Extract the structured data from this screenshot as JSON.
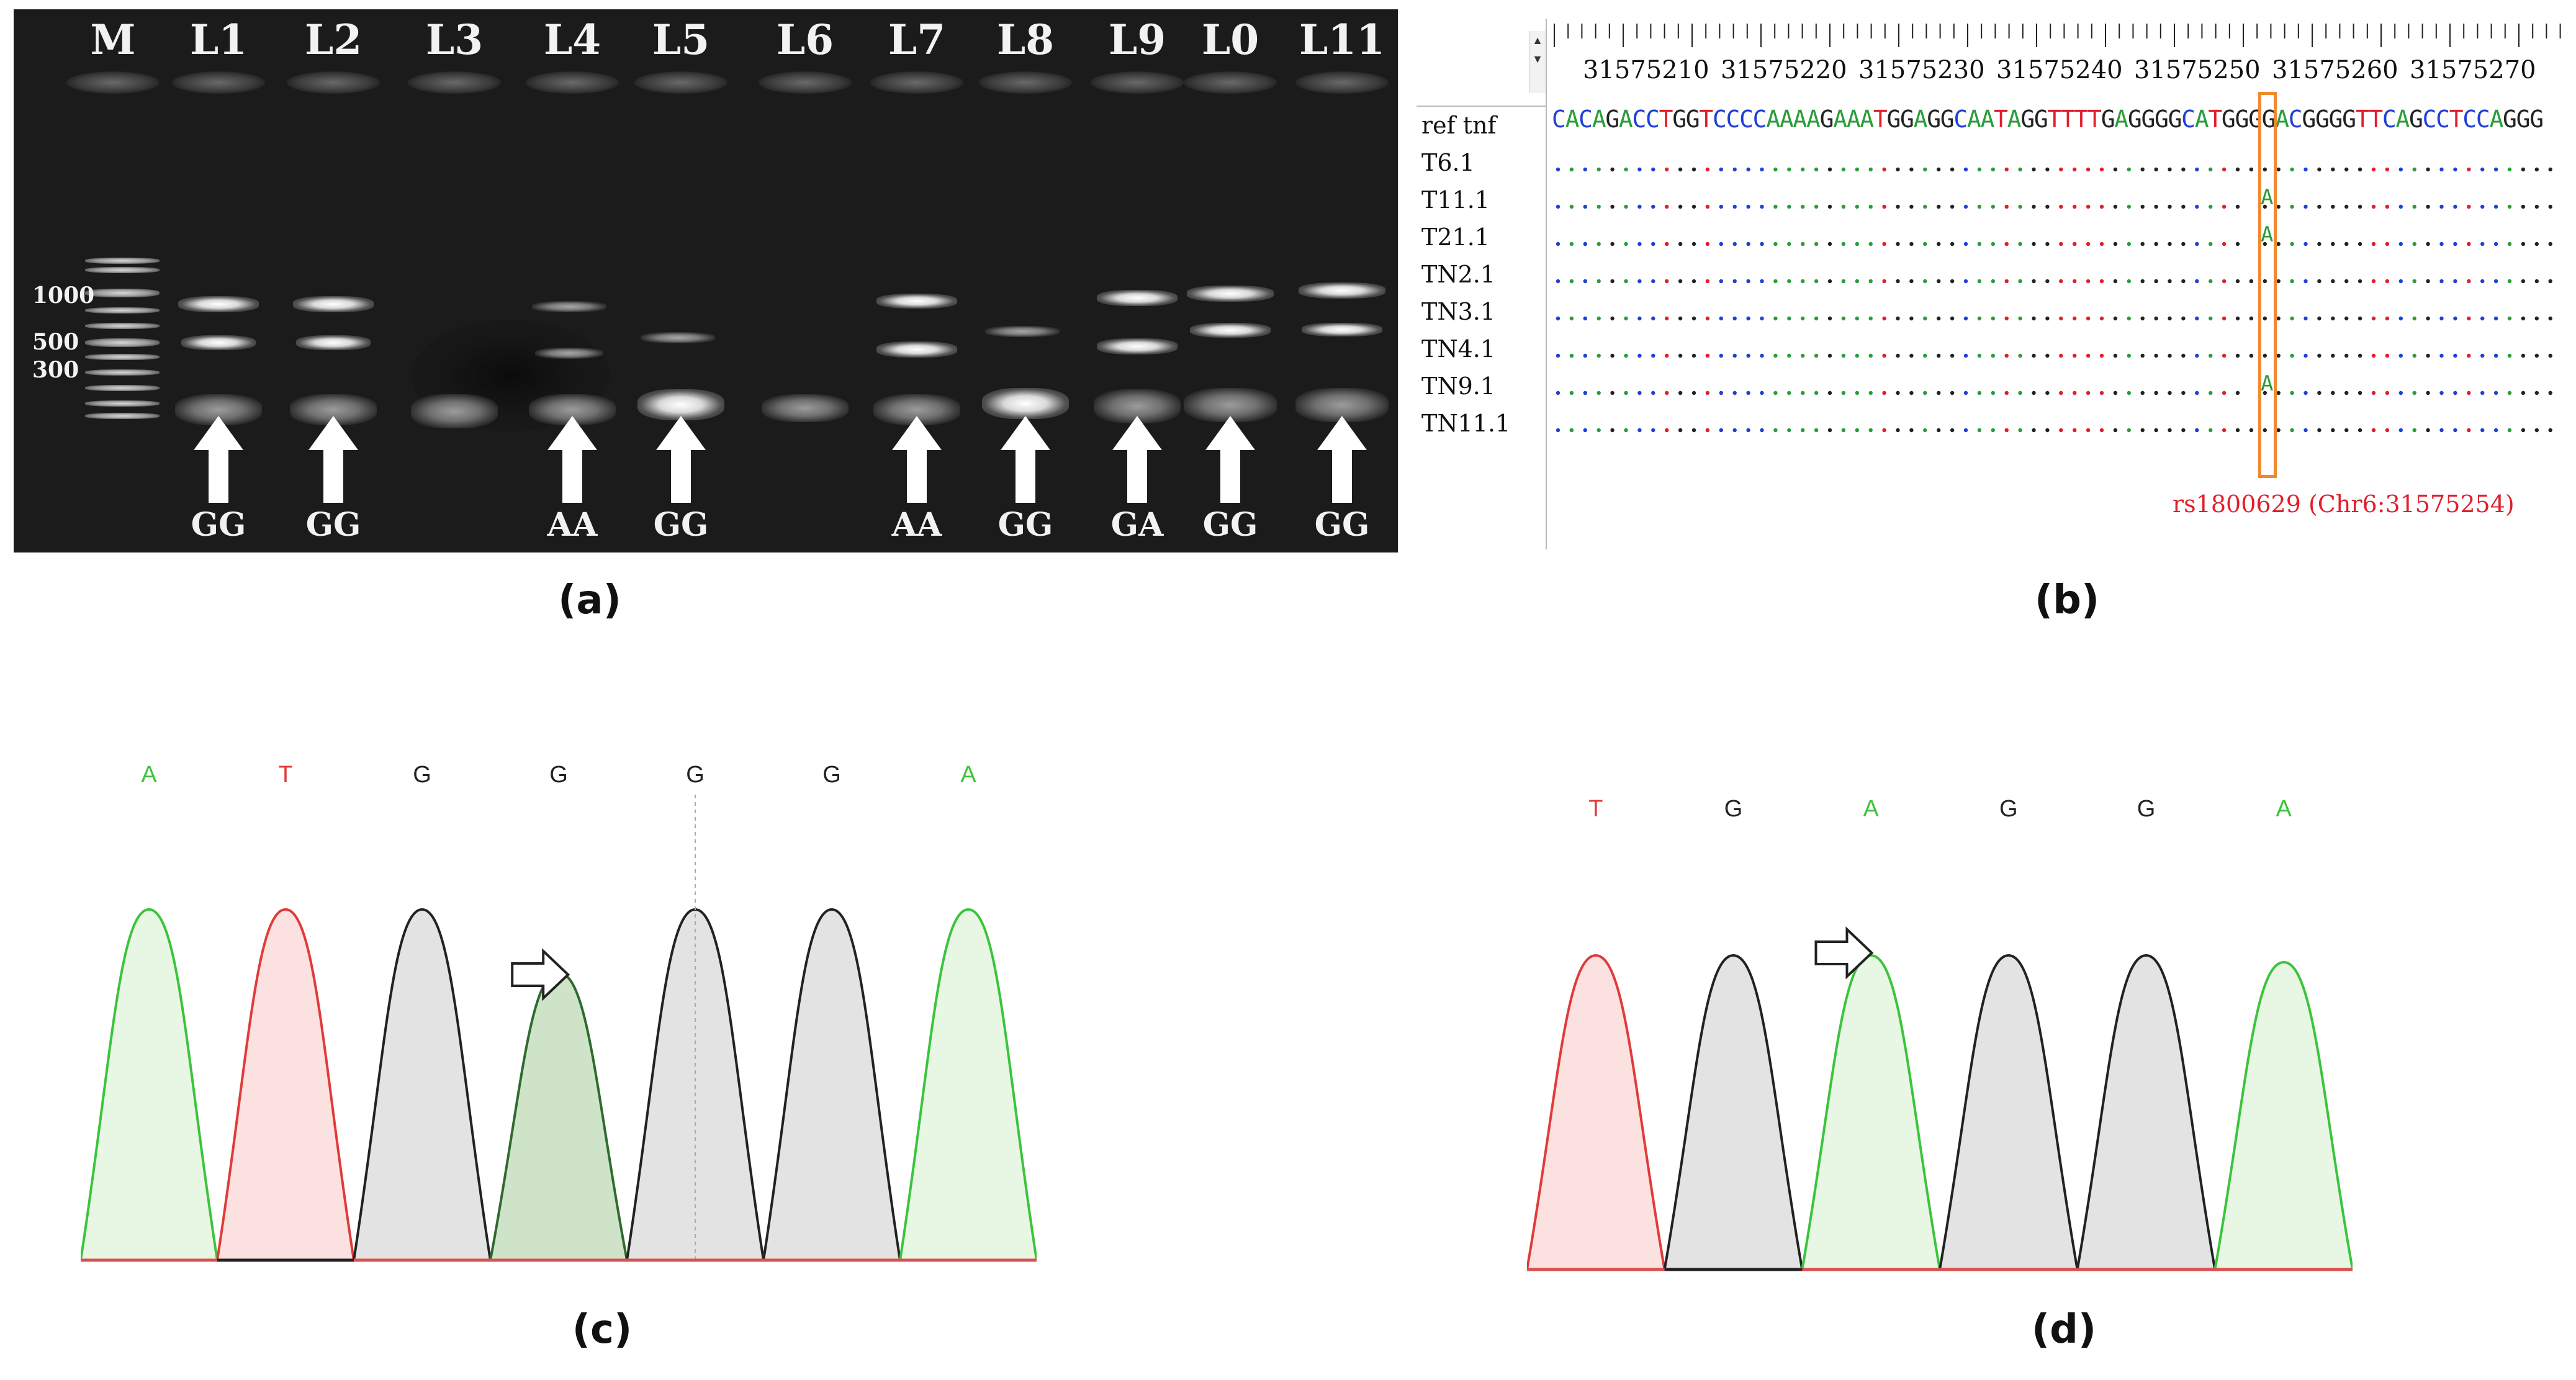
{
  "panel_a": {
    "caption": "(a)",
    "marker_label": "M",
    "lanes": [
      {
        "label": "L1",
        "genotype": "GG"
      },
      {
        "label": "L2",
        "genotype": "GG"
      },
      {
        "label": "L3",
        "genotype": ""
      },
      {
        "label": "L4",
        "genotype": "AA"
      },
      {
        "label": "L5",
        "genotype": "GG"
      },
      {
        "label": "L6",
        "genotype": ""
      },
      {
        "label": "L7",
        "genotype": "AA"
      },
      {
        "label": "L8",
        "genotype": "GG"
      },
      {
        "label": "L9",
        "genotype": "GA"
      },
      {
        "label": "L0",
        "genotype": "GG"
      },
      {
        "label": "L11",
        "genotype": "GG"
      }
    ],
    "size_labels": [
      "1000",
      "500",
      "300"
    ]
  },
  "panel_b": {
    "caption": "(b)",
    "positions": [
      "31575210",
      "31575220",
      "31575230",
      "31575240",
      "31575250",
      "31575260",
      "31575270"
    ],
    "reference": {
      "name": "ref tnf",
      "sequence": "CACAGACCTGGTCCCCAAAAGAAATGGAGGCAATAGGTTTTGAGGGGCATGGGGACGGGGTTCAGCCTCCAGGG"
    },
    "samples": [
      {
        "name": "T6.1",
        "snp_allele": ""
      },
      {
        "name": "T11.1",
        "snp_allele": "A"
      },
      {
        "name": "T21.1",
        "snp_allele": "A"
      },
      {
        "name": "TN2.1",
        "snp_allele": ""
      },
      {
        "name": "TN3.1",
        "snp_allele": ""
      },
      {
        "name": "TN4.1",
        "snp_allele": ""
      },
      {
        "name": "TN9.1",
        "snp_allele": "A"
      },
      {
        "name": "TN11.1",
        "snp_allele": ""
      }
    ],
    "snp_label": "rs1800629 (Chr6:31575254)",
    "colors": {
      "A": "#2a9d3a",
      "C": "#1f3fd6",
      "G": "#222222",
      "T": "#e01f2b",
      "box": "#f08a30"
    }
  },
  "panel_c": {
    "caption": "(c)",
    "bases": [
      "A",
      "T",
      "G",
      "G",
      "G",
      "G",
      "A"
    ],
    "peaks": [
      {
        "base": "A",
        "rel_height": 1.0
      },
      {
        "base": "T",
        "rel_height": 1.0
      },
      {
        "base": "G",
        "rel_height": 1.0
      },
      {
        "base": "G/A",
        "rel_height": 0.82
      },
      {
        "base": "G",
        "rel_height": 1.0
      },
      {
        "base": "G",
        "rel_height": 1.0
      },
      {
        "base": "A",
        "rel_height": 1.0
      }
    ]
  },
  "panel_d": {
    "caption": "(d)",
    "bases": [
      "T",
      "G",
      "A",
      "G",
      "G",
      "A"
    ],
    "peaks": [
      {
        "base": "T",
        "rel_height": 0.92
      },
      {
        "base": "G",
        "rel_height": 0.92
      },
      {
        "base": "A",
        "rel_height": 0.92
      },
      {
        "base": "G",
        "rel_height": 0.92
      },
      {
        "base": "G",
        "rel_height": 0.92
      },
      {
        "base": "A",
        "rel_height": 0.9
      }
    ]
  },
  "base_colors": {
    "A": "#3cc43c",
    "T": "#e23a3a",
    "G": "#222222",
    "C": "#2a5bd7"
  },
  "peak_fills": {
    "A": "#e8f6e4",
    "T": "#fbe1e0",
    "G": "#e3e3e3",
    "G/A": "#cfe3c9"
  }
}
